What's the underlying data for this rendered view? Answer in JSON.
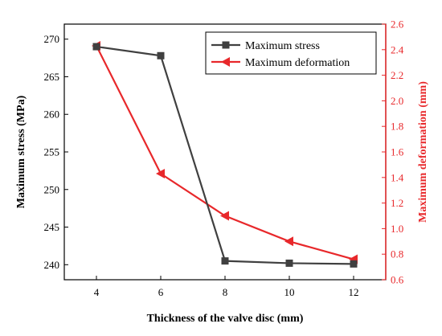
{
  "chart_data": {
    "type": "line",
    "xlabel": "Thickness of the valve disc (mm)",
    "x": [
      4,
      6,
      8,
      10,
      12
    ],
    "xticks": [
      "4",
      "6",
      "8",
      "10",
      "12"
    ],
    "xlim": [
      3,
      13
    ],
    "y_left": {
      "label": "Maximum stress (MPa)",
      "lim": [
        238,
        272
      ],
      "ticks": [
        "240",
        "245",
        "250",
        "255",
        "260",
        "265",
        "270"
      ],
      "color": "#000000"
    },
    "y_right": {
      "label": "Maximum deformation (mm)",
      "lim": [
        0.6,
        2.6
      ],
      "ticks": [
        "0.6",
        "0.8",
        "1.0",
        "1.2",
        "1.4",
        "1.6",
        "1.8",
        "2.0",
        "2.2",
        "2.4",
        "2.6"
      ],
      "color": "#e8282b"
    },
    "series": [
      {
        "name": "Maximum stress",
        "axis": "left",
        "values": [
          269.0,
          267.8,
          240.5,
          240.2,
          240.1
        ],
        "color": "#404040",
        "marker": "square"
      },
      {
        "name": "Maximum deformation",
        "axis": "right",
        "values": [
          2.43,
          1.43,
          1.1,
          0.9,
          0.76
        ],
        "color": "#e8282b",
        "marker": "triangle-left"
      }
    ],
    "legend": "top-right",
    "grid": false
  }
}
